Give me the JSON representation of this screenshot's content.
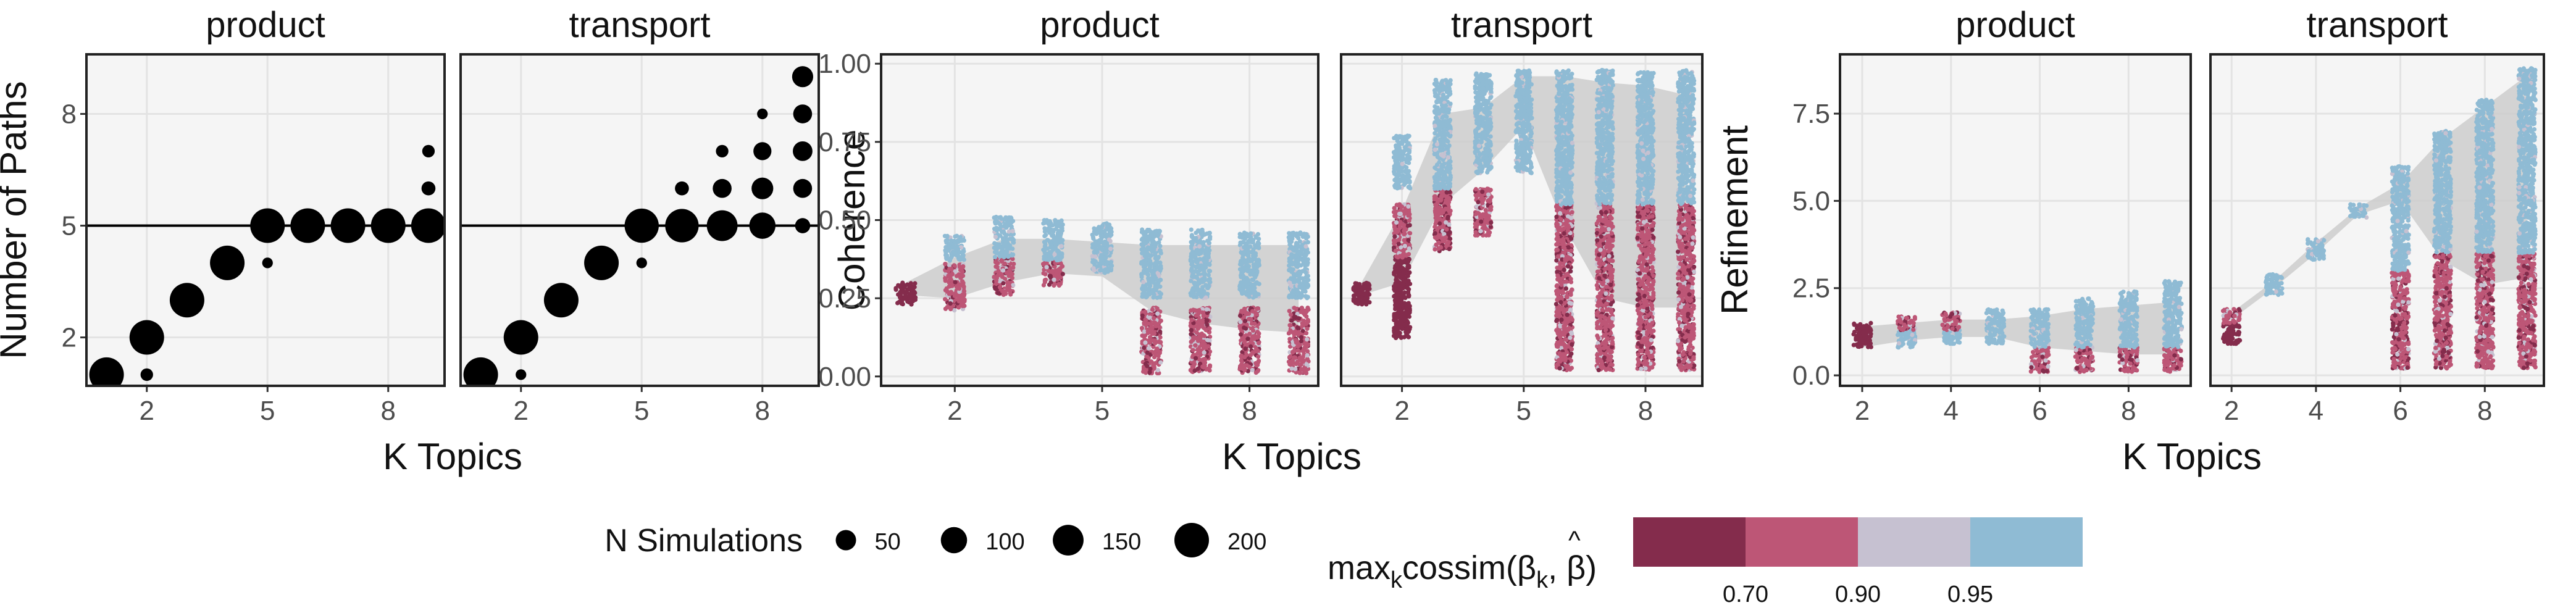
{
  "colors": {
    "panel_bg": "#f5f5f5",
    "grid": "#e3e3e3",
    "ribbon": "#cccccc",
    "high": "#8fbbd4",
    "mid": "#c6c1d1",
    "low": "#bd5676",
    "vlow": "#842c4c",
    "point": "#000000"
  },
  "chart_data": [
    {
      "type": "scatter",
      "ylabel": "Number of Paths",
      "xlabel": "K Topics",
      "x_ticks": [
        2,
        5,
        8
      ],
      "y_ticks": [
        2,
        5,
        8
      ],
      "xlim": [
        0.5,
        9.4
      ],
      "ylim": [
        0.7,
        9.6
      ],
      "hline": 5,
      "facets": [
        {
          "title": "product",
          "points": [
            {
              "k": 1,
              "paths": 1,
              "n": 200
            },
            {
              "k": 2,
              "paths": 1,
              "n": 10
            },
            {
              "k": 2,
              "paths": 2,
              "n": 200
            },
            {
              "k": 3,
              "paths": 3,
              "n": 200
            },
            {
              "k": 4,
              "paths": 4,
              "n": 200
            },
            {
              "k": 5,
              "paths": 4,
              "n": 5
            },
            {
              "k": 5,
              "paths": 5,
              "n": 200
            },
            {
              "k": 6,
              "paths": 5,
              "n": 200
            },
            {
              "k": 7,
              "paths": 5,
              "n": 200
            },
            {
              "k": 8,
              "paths": 5,
              "n": 200
            },
            {
              "k": 9,
              "paths": 5,
              "n": 200
            },
            {
              "k": 9,
              "paths": 6,
              "n": 15
            },
            {
              "k": 9,
              "paths": 7,
              "n": 10
            }
          ]
        },
        {
          "title": "transport",
          "points": [
            {
              "k": 1,
              "paths": 1,
              "n": 200
            },
            {
              "k": 2,
              "paths": 1,
              "n": 5
            },
            {
              "k": 2,
              "paths": 2,
              "n": 200
            },
            {
              "k": 3,
              "paths": 3,
              "n": 200
            },
            {
              "k": 4,
              "paths": 4,
              "n": 200
            },
            {
              "k": 5,
              "paths": 4,
              "n": 5
            },
            {
              "k": 5,
              "paths": 5,
              "n": 195
            },
            {
              "k": 6,
              "paths": 5,
              "n": 185
            },
            {
              "k": 6,
              "paths": 6,
              "n": 15
            },
            {
              "k": 7,
              "paths": 5,
              "n": 150
            },
            {
              "k": 7,
              "paths": 6,
              "n": 40
            },
            {
              "k": 7,
              "paths": 7,
              "n": 10
            },
            {
              "k": 8,
              "paths": 5,
              "n": 100
            },
            {
              "k": 8,
              "paths": 6,
              "n": 60
            },
            {
              "k": 8,
              "paths": 7,
              "n": 35
            },
            {
              "k": 8,
              "paths": 8,
              "n": 5
            },
            {
              "k": 9,
              "paths": 5,
              "n": 20
            },
            {
              "k": 9,
              "paths": 6,
              "n": 40
            },
            {
              "k": 9,
              "paths": 7,
              "n": 45
            },
            {
              "k": 9,
              "paths": 8,
              "n": 40
            },
            {
              "k": 9,
              "paths": 9,
              "n": 55
            }
          ]
        }
      ]
    },
    {
      "type": "scatter",
      "ylabel": "Coherence",
      "xlabel": "K Topics",
      "x_ticks": [
        2,
        5,
        8
      ],
      "y_ticks": [
        "0.00",
        "0.25",
        "0.50",
        "0.75",
        "1.00"
      ],
      "xlim": [
        0.5,
        9.4
      ],
      "ylim": [
        -0.03,
        1.03
      ],
      "facets": [
        {
          "title": "product",
          "ribbon": {
            "k": [
              1,
              2,
              3,
              4,
              5,
              6,
              7,
              8,
              9
            ],
            "lower": [
              0.26,
              0.25,
              0.3,
              0.33,
              0.32,
              0.21,
              0.17,
              0.15,
              0.14
            ],
            "upper": [
              0.3,
              0.38,
              0.44,
              0.44,
              0.43,
              0.42,
              0.42,
              0.42,
              0.42
            ]
          },
          "clusters": [
            {
              "k": 1,
              "min": 0.23,
              "max": 0.3,
              "color": "vlow"
            },
            {
              "k": 2,
              "min": 0.21,
              "max": 0.36,
              "color": "low"
            },
            {
              "k": 2,
              "min": 0.37,
              "max": 0.45,
              "color": "high"
            },
            {
              "k": 3,
              "min": 0.26,
              "max": 0.38,
              "color": "low"
            },
            {
              "k": 3,
              "min": 0.38,
              "max": 0.51,
              "color": "high"
            },
            {
              "k": 4,
              "min": 0.29,
              "max": 0.37,
              "color": "low"
            },
            {
              "k": 4,
              "min": 0.37,
              "max": 0.5,
              "color": "high"
            },
            {
              "k": 5,
              "min": 0.33,
              "max": 0.49,
              "color": "high"
            },
            {
              "k": 6,
              "min": 0.01,
              "max": 0.22,
              "color": "low"
            },
            {
              "k": 6,
              "min": 0.25,
              "max": 0.47,
              "color": "high"
            },
            {
              "k": 7,
              "min": 0.01,
              "max": 0.22,
              "color": "low"
            },
            {
              "k": 7,
              "min": 0.25,
              "max": 0.47,
              "color": "high"
            },
            {
              "k": 8,
              "min": 0.01,
              "max": 0.22,
              "color": "low"
            },
            {
              "k": 8,
              "min": 0.25,
              "max": 0.46,
              "color": "high"
            },
            {
              "k": 9,
              "min": 0.01,
              "max": 0.22,
              "color": "low"
            },
            {
              "k": 9,
              "min": 0.25,
              "max": 0.46,
              "color": "high"
            }
          ]
        },
        {
          "title": "transport",
          "ribbon": {
            "k": [
              1,
              2,
              3,
              4,
              5,
              6,
              7,
              8,
              9
            ],
            "lower": [
              0.26,
              0.3,
              0.55,
              0.66,
              0.8,
              0.48,
              0.25,
              0.22,
              0.22
            ],
            "upper": [
              0.3,
              0.53,
              0.84,
              0.86,
              0.96,
              0.96,
              0.94,
              0.93,
              0.9
            ]
          },
          "clusters": [
            {
              "k": 1,
              "min": 0.23,
              "max": 0.3,
              "color": "vlow"
            },
            {
              "k": 2,
              "min": 0.12,
              "max": 0.38,
              "color": "vlow"
            },
            {
              "k": 2,
              "min": 0.38,
              "max": 0.55,
              "color": "low"
            },
            {
              "k": 2,
              "min": 0.6,
              "max": 0.77,
              "color": "high"
            },
            {
              "k": 3,
              "min": 0.4,
              "max": 0.6,
              "color": "low"
            },
            {
              "k": 3,
              "min": 0.6,
              "max": 0.95,
              "color": "high"
            },
            {
              "k": 4,
              "min": 0.45,
              "max": 0.6,
              "color": "low"
            },
            {
              "k": 4,
              "min": 0.65,
              "max": 0.97,
              "color": "high"
            },
            {
              "k": 5,
              "min": 0.65,
              "max": 0.98,
              "color": "high"
            },
            {
              "k": 6,
              "min": 0.02,
              "max": 0.55,
              "color": "low"
            },
            {
              "k": 6,
              "min": 0.55,
              "max": 0.98,
              "color": "high"
            },
            {
              "k": 7,
              "min": 0.02,
              "max": 0.55,
              "color": "low"
            },
            {
              "k": 7,
              "min": 0.55,
              "max": 0.98,
              "color": "high"
            },
            {
              "k": 8,
              "min": 0.02,
              "max": 0.55,
              "color": "low"
            },
            {
              "k": 8,
              "min": 0.55,
              "max": 0.98,
              "color": "high"
            },
            {
              "k": 9,
              "min": 0.02,
              "max": 0.55,
              "color": "low"
            },
            {
              "k": 9,
              "min": 0.55,
              "max": 0.98,
              "color": "high"
            }
          ]
        }
      ]
    },
    {
      "type": "scatter",
      "ylabel": "Refinement",
      "xlabel": "K Topics",
      "x_ticks": [
        2,
        4,
        6,
        8
      ],
      "y_ticks": [
        "0.0",
        "2.5",
        "5.0",
        "7.5"
      ],
      "xlim": [
        1.5,
        9.4
      ],
      "ylim": [
        -0.3,
        9.2
      ],
      "facets": [
        {
          "title": "product",
          "ribbon": {
            "k": [
              2,
              3,
              4,
              5,
              6,
              7,
              8,
              9
            ],
            "lower": [
              0.8,
              1.0,
              1.1,
              1.1,
              0.8,
              0.7,
              0.6,
              0.6
            ],
            "upper": [
              1.4,
              1.5,
              1.6,
              1.6,
              1.7,
              1.9,
              2.0,
              2.1
            ]
          },
          "clusters": [
            {
              "k": 2,
              "min": 0.8,
              "max": 1.5,
              "color": "vlow"
            },
            {
              "k": 3,
              "min": 0.8,
              "max": 1.3,
              "color": "high"
            },
            {
              "k": 3,
              "min": 1.3,
              "max": 1.7,
              "color": "low"
            },
            {
              "k": 4,
              "min": 0.9,
              "max": 1.3,
              "color": "high"
            },
            {
              "k": 4,
              "min": 1.3,
              "max": 1.8,
              "color": "low"
            },
            {
              "k": 5,
              "min": 0.9,
              "max": 1.9,
              "color": "high"
            },
            {
              "k": 6,
              "min": 0.1,
              "max": 0.8,
              "color": "low"
            },
            {
              "k": 6,
              "min": 0.8,
              "max": 1.9,
              "color": "high"
            },
            {
              "k": 7,
              "min": 0.1,
              "max": 0.8,
              "color": "low"
            },
            {
              "k": 7,
              "min": 0.8,
              "max": 2.2,
              "color": "high"
            },
            {
              "k": 8,
              "min": 0.1,
              "max": 0.8,
              "color": "low"
            },
            {
              "k": 8,
              "min": 0.8,
              "max": 2.4,
              "color": "high"
            },
            {
              "k": 9,
              "min": 0.1,
              "max": 0.8,
              "color": "low"
            },
            {
              "k": 9,
              "min": 0.8,
              "max": 2.7,
              "color": "high"
            }
          ]
        },
        {
          "title": "transport",
          "ribbon": {
            "k": [
              2,
              3,
              4,
              5,
              6,
              7,
              8,
              9
            ],
            "lower": [
              1.6,
              2.5,
              3.5,
              4.6,
              5.0,
              3.3,
              2.6,
              2.8
            ],
            "upper": [
              1.8,
              2.7,
              3.8,
              4.8,
              5.5,
              6.8,
              7.7,
              8.6
            ]
          },
          "clusters": [
            {
              "k": 2,
              "min": 0.9,
              "max": 1.5,
              "color": "vlow"
            },
            {
              "k": 2,
              "min": 1.5,
              "max": 1.9,
              "color": "low"
            },
            {
              "k": 3,
              "min": 2.3,
              "max": 2.9,
              "color": "high"
            },
            {
              "k": 4,
              "min": 3.3,
              "max": 3.9,
              "color": "high"
            },
            {
              "k": 5,
              "min": 4.5,
              "max": 4.9,
              "color": "high"
            },
            {
              "k": 6,
              "min": 0.2,
              "max": 3.0,
              "color": "low"
            },
            {
              "k": 6,
              "min": 3.0,
              "max": 6.0,
              "color": "high"
            },
            {
              "k": 7,
              "min": 0.2,
              "max": 3.5,
              "color": "low"
            },
            {
              "k": 7,
              "min": 3.5,
              "max": 7.0,
              "color": "high"
            },
            {
              "k": 8,
              "min": 0.2,
              "max": 3.5,
              "color": "low"
            },
            {
              "k": 8,
              "min": 3.5,
              "max": 7.9,
              "color": "high"
            },
            {
              "k": 9,
              "min": 0.2,
              "max": 3.5,
              "color": "low"
            },
            {
              "k": 9,
              "min": 3.5,
              "max": 8.8,
              "color": "high"
            }
          ]
        }
      ]
    }
  ],
  "legend_size": {
    "title": "N Simulations",
    "values": [
      50,
      100,
      150,
      200
    ],
    "labels": [
      "50",
      "100",
      "150",
      "200"
    ]
  },
  "legend_color": {
    "title_main": "max",
    "title_sub": "k",
    "title_rest": "cossim(β",
    "title_sub2": "k",
    "title_end": ", ",
    "title_hat": "β",
    "title_close": ")",
    "hat_mark": "^",
    "breaks": [
      "0.70",
      "0.90",
      "0.95"
    ],
    "colors": [
      "#842c4c",
      "#bd5676",
      "#c6c1d1",
      "#8fbbd4"
    ]
  }
}
